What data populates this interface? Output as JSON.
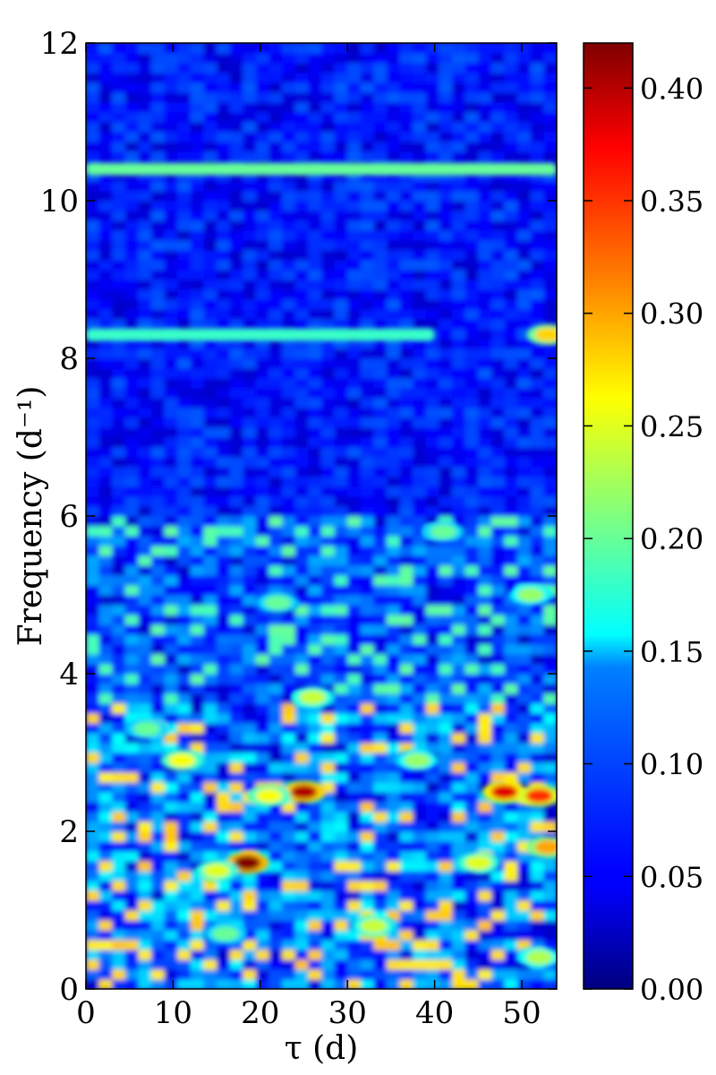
{
  "chart_data": {
    "type": "heatmap",
    "title": "",
    "xlabel": "τ (d)",
    "ylabel": "Frequency (d⁻¹)",
    "xlim": [
      0,
      54
    ],
    "ylim": [
      0,
      12
    ],
    "x_ticks": [
      0,
      10,
      20,
      30,
      40,
      50
    ],
    "y_ticks": [
      0,
      2,
      4,
      6,
      8,
      10,
      12
    ],
    "colorbar": {
      "colormap": "jet",
      "range": [
        0.0,
        0.42
      ],
      "ticks": [
        0.0,
        0.05,
        0.1,
        0.15,
        0.2,
        0.25,
        0.3,
        0.35,
        0.4
      ],
      "tick_labels": [
        "0.00",
        "0.05",
        "0.10",
        "0.15",
        "0.20",
        "0.25",
        "0.30",
        "0.35",
        "0.40"
      ]
    },
    "grid": false,
    "background_level": 0.03,
    "features": [
      {
        "kind": "ridge",
        "frequency": 10.4,
        "tau_range": [
          0,
          54
        ],
        "value": 0.2
      },
      {
        "kind": "ridge",
        "frequency": 8.3,
        "tau_range": [
          0,
          40
        ],
        "value": 0.18
      },
      {
        "kind": "peak",
        "tau": 25,
        "frequency": 2.5,
        "value": 0.4
      },
      {
        "kind": "peak",
        "tau": 18.5,
        "frequency": 1.6,
        "value": 0.42
      },
      {
        "kind": "peak",
        "tau": 48,
        "frequency": 2.5,
        "value": 0.38
      },
      {
        "kind": "peak",
        "tau": 52,
        "frequency": 2.45,
        "value": 0.35
      },
      {
        "kind": "peak",
        "tau": 53,
        "frequency": 1.8,
        "value": 0.3
      },
      {
        "kind": "peak",
        "tau": 53,
        "frequency": 8.3,
        "value": 0.28
      },
      {
        "kind": "peak",
        "tau": 11,
        "frequency": 2.9,
        "value": 0.26
      },
      {
        "kind": "peak",
        "tau": 21,
        "frequency": 2.45,
        "value": 0.26
      },
      {
        "kind": "peak",
        "tau": 15,
        "frequency": 1.5,
        "value": 0.25
      },
      {
        "kind": "peak",
        "tau": 26,
        "frequency": 3.7,
        "value": 0.24
      },
      {
        "kind": "peak",
        "tau": 45,
        "frequency": 1.6,
        "value": 0.25
      },
      {
        "kind": "peak",
        "tau": 33,
        "frequency": 0.8,
        "value": 0.24
      },
      {
        "kind": "peak",
        "tau": 38,
        "frequency": 2.9,
        "value": 0.22
      },
      {
        "kind": "peak",
        "tau": 51,
        "frequency": 5.0,
        "value": 0.22
      },
      {
        "kind": "peak",
        "tau": 41,
        "frequency": 5.8,
        "value": 0.2
      },
      {
        "kind": "peak",
        "tau": 22,
        "frequency": 4.9,
        "value": 0.2
      },
      {
        "kind": "peak",
        "tau": 52,
        "frequency": 0.4,
        "value": 0.23
      },
      {
        "kind": "peak",
        "tau": 7,
        "frequency": 3.3,
        "value": 0.2
      },
      {
        "kind": "peak",
        "tau": 16,
        "frequency": 0.7,
        "value": 0.2
      }
    ]
  }
}
